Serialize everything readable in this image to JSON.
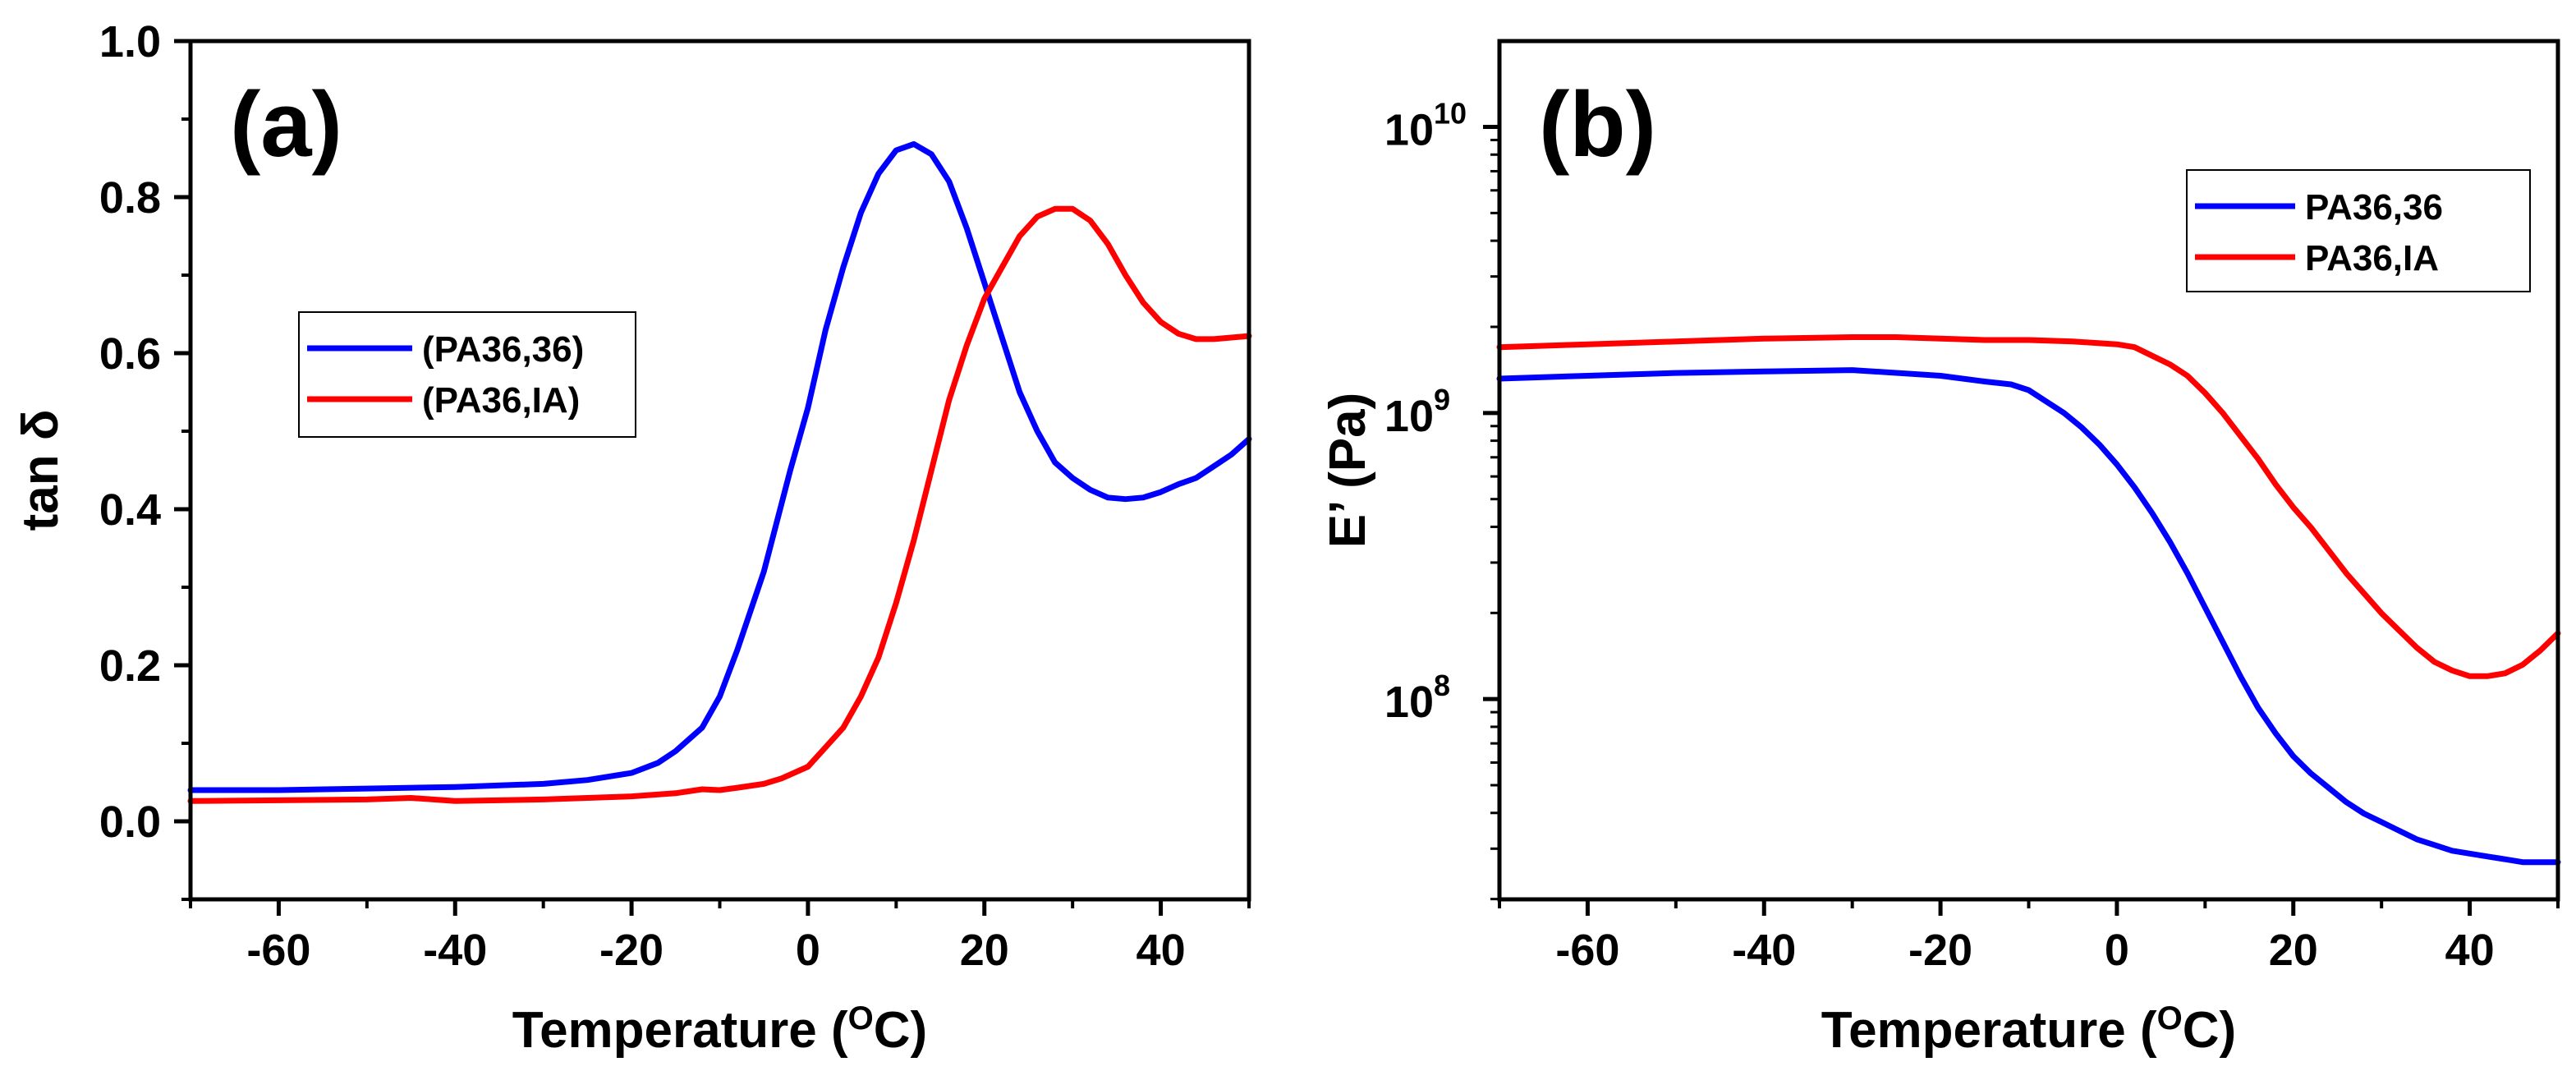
{
  "chart_data": [
    {
      "type": "line",
      "panel_label": "(a)",
      "xlabel": "Temperature (",
      "xlabel_sup": "O",
      "xlabel_tail": "C)",
      "ylabel": "tan δ",
      "xlim": [
        -70,
        50
      ],
      "ylim": [
        -0.1,
        1.0
      ],
      "y_scale": "linear",
      "x_ticks": [
        -60,
        -40,
        -20,
        0,
        20,
        40
      ],
      "x_tick_labels": [
        "-60",
        "-40",
        "-20",
        "0",
        "20",
        "40"
      ],
      "y_ticks": [
        0.0,
        0.2,
        0.4,
        0.6,
        0.8,
        1.0
      ],
      "y_tick_labels": [
        "0.0",
        "0.2",
        "0.4",
        "0.6",
        "0.8",
        "1.0"
      ],
      "legend_position": "center-left",
      "series": [
        {
          "name": "(PA36,36)",
          "color": "#0000ff",
          "points": [
            [
              -70,
              0.04
            ],
            [
              -60,
              0.04
            ],
            [
              -50,
              0.042
            ],
            [
              -40,
              0.044
            ],
            [
              -30,
              0.048
            ],
            [
              -25,
              0.053
            ],
            [
              -20,
              0.062
            ],
            [
              -17,
              0.075
            ],
            [
              -15,
              0.09
            ],
            [
              -12,
              0.12
            ],
            [
              -10,
              0.16
            ],
            [
              -8,
              0.22
            ],
            [
              -5,
              0.32
            ],
            [
              -2,
              0.45
            ],
            [
              0,
              0.53
            ],
            [
              2,
              0.63
            ],
            [
              4,
              0.71
            ],
            [
              6,
              0.78
            ],
            [
              8,
              0.83
            ],
            [
              10,
              0.86
            ],
            [
              12,
              0.868
            ],
            [
              14,
              0.855
            ],
            [
              16,
              0.82
            ],
            [
              18,
              0.76
            ],
            [
              20,
              0.69
            ],
            [
              22,
              0.62
            ],
            [
              24,
              0.55
            ],
            [
              26,
              0.5
            ],
            [
              28,
              0.46
            ],
            [
              30,
              0.44
            ],
            [
              32,
              0.425
            ],
            [
              34,
              0.415
            ],
            [
              36,
              0.413
            ],
            [
              38,
              0.415
            ],
            [
              40,
              0.422
            ],
            [
              42,
              0.432
            ],
            [
              44,
              0.44
            ],
            [
              46,
              0.455
            ],
            [
              48,
              0.47
            ],
            [
              50,
              0.49
            ]
          ]
        },
        {
          "name": "(PA36,IA)",
          "color": "#ff0000",
          "points": [
            [
              -70,
              0.026
            ],
            [
              -60,
              0.027
            ],
            [
              -50,
              0.028
            ],
            [
              -45,
              0.03
            ],
            [
              -40,
              0.026
            ],
            [
              -35,
              0.027
            ],
            [
              -30,
              0.028
            ],
            [
              -25,
              0.03
            ],
            [
              -20,
              0.032
            ],
            [
              -15,
              0.036
            ],
            [
              -12,
              0.041
            ],
            [
              -10,
              0.04
            ],
            [
              -8,
              0.043
            ],
            [
              -5,
              0.048
            ],
            [
              -3,
              0.055
            ],
            [
              0,
              0.07
            ],
            [
              2,
              0.095
            ],
            [
              4,
              0.12
            ],
            [
              6,
              0.16
            ],
            [
              8,
              0.21
            ],
            [
              10,
              0.28
            ],
            [
              12,
              0.36
            ],
            [
              14,
              0.45
            ],
            [
              16,
              0.54
            ],
            [
              18,
              0.61
            ],
            [
              20,
              0.67
            ],
            [
              22,
              0.71
            ],
            [
              24,
              0.75
            ],
            [
              26,
              0.775
            ],
            [
              28,
              0.785
            ],
            [
              30,
              0.785
            ],
            [
              32,
              0.77
            ],
            [
              34,
              0.74
            ],
            [
              36,
              0.7
            ],
            [
              38,
              0.665
            ],
            [
              40,
              0.64
            ],
            [
              42,
              0.625
            ],
            [
              44,
              0.618
            ],
            [
              46,
              0.618
            ],
            [
              48,
              0.62
            ],
            [
              50,
              0.622
            ]
          ]
        }
      ]
    },
    {
      "type": "line",
      "panel_label": "(b)",
      "xlabel": "Temperature (",
      "xlabel_sup": "O",
      "xlabel_tail": "C)",
      "ylabel": "E’ (Pa)",
      "xlim": [
        -70,
        50
      ],
      "ylim_log10": [
        7.3,
        10.3
      ],
      "y_scale": "log",
      "x_ticks": [
        -60,
        -40,
        -20,
        0,
        20,
        40
      ],
      "x_tick_labels": [
        "-60",
        "-40",
        "-20",
        "0",
        "20",
        "40"
      ],
      "y_ticks_log10": [
        8,
        9,
        10
      ],
      "y_tick_labels": [
        "10",
        "10",
        "10"
      ],
      "y_tick_exponents": [
        "8",
        "9",
        "10"
      ],
      "legend_position": "top-right",
      "series": [
        {
          "name": "PA36,36",
          "color": "#0000ff",
          "points_log10": [
            [
              -70,
              9.12
            ],
            [
              -60,
              9.13
            ],
            [
              -50,
              9.14
            ],
            [
              -40,
              9.145
            ],
            [
              -30,
              9.15
            ],
            [
              -20,
              9.13
            ],
            [
              -15,
              9.11
            ],
            [
              -12,
              9.1
            ],
            [
              -10,
              9.08
            ],
            [
              -8,
              9.04
            ],
            [
              -6,
              9.0
            ],
            [
              -4,
              8.95
            ],
            [
              -2,
              8.89
            ],
            [
              0,
              8.82
            ],
            [
              2,
              8.74
            ],
            [
              4,
              8.65
            ],
            [
              6,
              8.55
            ],
            [
              8,
              8.44
            ],
            [
              10,
              8.32
            ],
            [
              12,
              8.2
            ],
            [
              14,
              8.08
            ],
            [
              16,
              7.97
            ],
            [
              18,
              7.88
            ],
            [
              20,
              7.8
            ],
            [
              22,
              7.74
            ],
            [
              24,
              7.69
            ],
            [
              26,
              7.64
            ],
            [
              28,
              7.6
            ],
            [
              30,
              7.57
            ],
            [
              32,
              7.54
            ],
            [
              34,
              7.51
            ],
            [
              36,
              7.49
            ],
            [
              38,
              7.47
            ],
            [
              40,
              7.46
            ],
            [
              42,
              7.45
            ],
            [
              44,
              7.44
            ],
            [
              46,
              7.43
            ],
            [
              48,
              7.43
            ],
            [
              50,
              7.43
            ]
          ]
        },
        {
          "name": "PA36,IA",
          "color": "#ff0000",
          "points_log10": [
            [
              -70,
              9.23
            ],
            [
              -60,
              9.24
            ],
            [
              -50,
              9.25
            ],
            [
              -40,
              9.26
            ],
            [
              -30,
              9.265
            ],
            [
              -25,
              9.265
            ],
            [
              -20,
              9.26
            ],
            [
              -15,
              9.255
            ],
            [
              -10,
              9.255
            ],
            [
              -5,
              9.25
            ],
            [
              0,
              9.24
            ],
            [
              2,
              9.23
            ],
            [
              4,
              9.2
            ],
            [
              6,
              9.17
            ],
            [
              8,
              9.13
            ],
            [
              10,
              9.07
            ],
            [
              12,
              9.0
            ],
            [
              14,
              8.92
            ],
            [
              16,
              8.84
            ],
            [
              18,
              8.75
            ],
            [
              20,
              8.67
            ],
            [
              22,
              8.6
            ],
            [
              24,
              8.52
            ],
            [
              26,
              8.44
            ],
            [
              28,
              8.37
            ],
            [
              30,
              8.3
            ],
            [
              32,
              8.24
            ],
            [
              34,
              8.18
            ],
            [
              36,
              8.13
            ],
            [
              38,
              8.1
            ],
            [
              40,
              8.08
            ],
            [
              42,
              8.08
            ],
            [
              44,
              8.09
            ],
            [
              46,
              8.12
            ],
            [
              48,
              8.17
            ],
            [
              50,
              8.23
            ]
          ]
        }
      ]
    }
  ]
}
